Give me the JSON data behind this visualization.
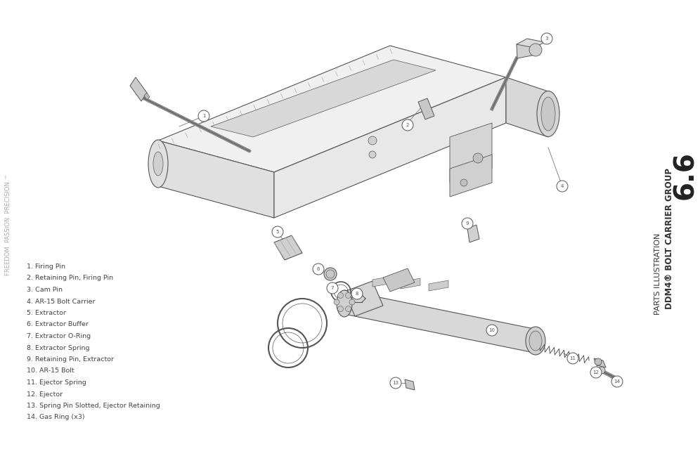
{
  "bg_color": "#ffffff",
  "line_color": "#555555",
  "dark_line": "#333333",
  "text_color": "#555555",
  "title_number": "6.6",
  "title_line1": "DDM4® BOLT CARRIER GROUP",
  "title_line2": "PARTS ILLUSTRATION",
  "sidebar_text": "FREEDOM. PASSION. PRECISION.™",
  "parts_list": [
    "1. Firing Pin",
    "2. Retaining Pin, Firing Pin",
    "3. Cam Pin",
    "4. AR-15 Bolt Carrier",
    "5. Extractor",
    "6. Extractor Buffer",
    "7. Extractor O-Ring",
    "8. Extractor Spring",
    "9. Retaining Pin, Extractor",
    "10. AR-15 Bolt",
    "11. Ejector Spring",
    "12. Ejector",
    "13. Spring Pin Slotted, Ejector Retaining",
    "14. Gas Ring (x3)"
  ],
  "figsize": [
    9.96,
    6.39
  ],
  "dpi": 100
}
